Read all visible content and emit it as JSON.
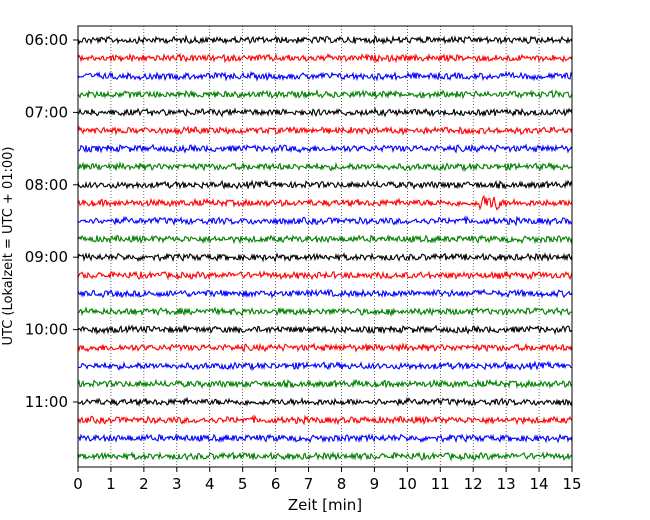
{
  "chart_data": {
    "type": "line",
    "title": "",
    "xlabel": "Zeit  [min]",
    "ylabel": "UTC (Lokalzeit = UTC + 01:00)",
    "xlim": [
      0,
      15
    ],
    "x_ticks": [
      "0",
      "1",
      "2",
      "3",
      "4",
      "5",
      "6",
      "7",
      "8",
      "9",
      "10",
      "11",
      "12",
      "13",
      "14",
      "15"
    ],
    "y_tick_labels": [
      "06:00",
      "07:00",
      "08:00",
      "09:00",
      "10:00",
      "11:00"
    ],
    "grid": "vertical dotted lines at each minute",
    "trace_interval_minutes": 15,
    "start_time": "06:00",
    "trace_count": 24,
    "trace_colors": [
      "#000000",
      "#ff0000",
      "#0000ff",
      "#008000"
    ],
    "series": [
      {
        "start": "06:00",
        "color": "#000000"
      },
      {
        "start": "06:15",
        "color": "#ff0000"
      },
      {
        "start": "06:30",
        "color": "#0000ff"
      },
      {
        "start": "06:45",
        "color": "#008000"
      },
      {
        "start": "07:00",
        "color": "#000000"
      },
      {
        "start": "07:15",
        "color": "#ff0000"
      },
      {
        "start": "07:30",
        "color": "#0000ff"
      },
      {
        "start": "07:45",
        "color": "#008000"
      },
      {
        "start": "08:00",
        "color": "#000000"
      },
      {
        "start": "08:15",
        "color": "#ff0000"
      },
      {
        "start": "08:30",
        "color": "#0000ff"
      },
      {
        "start": "08:45",
        "color": "#008000"
      },
      {
        "start": "09:00",
        "color": "#000000"
      },
      {
        "start": "09:15",
        "color": "#ff0000"
      },
      {
        "start": "09:30",
        "color": "#0000ff"
      },
      {
        "start": "09:45",
        "color": "#008000"
      },
      {
        "start": "10:00",
        "color": "#000000"
      },
      {
        "start": "10:15",
        "color": "#ff0000"
      },
      {
        "start": "10:30",
        "color": "#0000ff"
      },
      {
        "start": "10:45",
        "color": "#008000"
      },
      {
        "start": "11:00",
        "color": "#000000"
      },
      {
        "start": "11:15",
        "color": "#ff0000"
      },
      {
        "start": "11:30",
        "color": "#0000ff"
      },
      {
        "start": "11:45",
        "color": "#008000"
      }
    ],
    "notable_events": [
      {
        "start": "08:15",
        "x_min": 12.5,
        "description": "slightly larger amplitude burst"
      }
    ]
  }
}
